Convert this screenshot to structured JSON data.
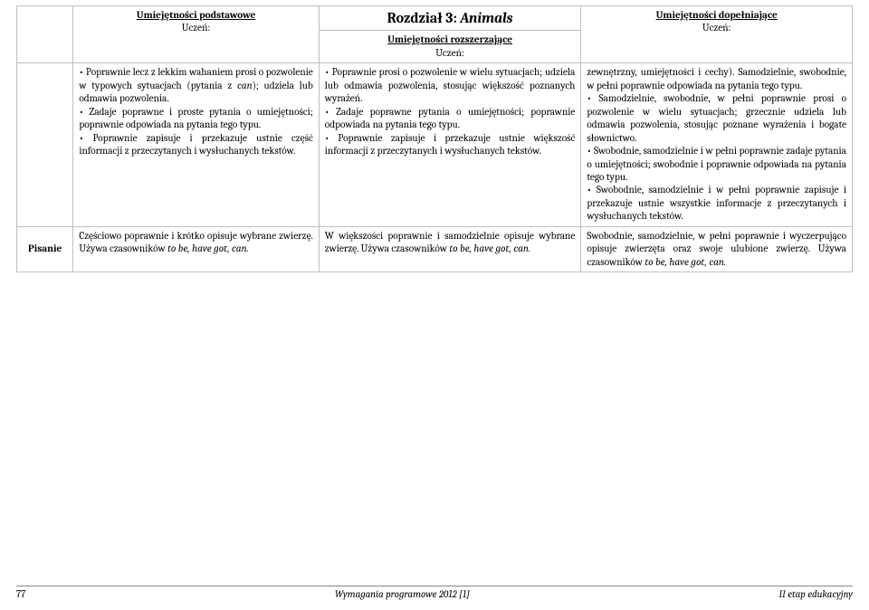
{
  "chapter": {
    "prefix": "Rozdział 3: ",
    "title_italic": "Animals"
  },
  "headers": {
    "basic": "Umiejętności podstawowe",
    "ext": "Umiejętności rozszerzające",
    "comp": "Umiejętności dopełniające",
    "student": "Uczeń:"
  },
  "row_label": "Pisanie",
  "r1": {
    "basic": [
      "• Poprawnie lecz z lekkim wahaniem prosi o pozwolenie w typowych sytuacjach (pytania z ",
      "can",
      "); udziela lub odmawia pozwolenia.",
      "• Zadaje poprawne i proste pytania o umiejętności; poprawnie odpowiada na pytania tego typu.",
      "• Poprawnie zapisuje i przekazuje ustnie część informacji z przeczytanych i wysłuchanych tekstów."
    ],
    "ext": [
      "• Poprawnie prosi o pozwolenie w wielu sytuacjach; udziela lub odmawia pozwolenia, stosując większość poznanych wyrażeń.",
      "• Zadaje poprawne pytania o umiejętności; poprawnie odpowiada na pytania tego typu.",
      "• Poprawnie zapisuje i przekazuje ustnie większość informacji z przeczytanych i wysłuchanych tekstów."
    ],
    "comp": [
      "zewnętrzny, umiejętności i cechy). Samodzielnie, swobodnie, w pełni poprawnie odpowiada na pytania tego typu.",
      "• Samodzielnie, swobodnie, w pełni poprawnie prosi o pozwolenie w wielu sytuacjach; grzecznie udziela lub odmawia pozwolenia, stosując poznane wyrażenia i bogate słownictwo.",
      "• Swobodnie, samodzielnie i w pełni poprawnie zadaje pytania o umiejętności; swobodnie i poprawnie odpowiada na pytania tego typu.",
      "• Swobodnie, samodzielnie i w pełni poprawnie zapisuje i przekazuje ustnie wszystkie informacje z przeczytanych i wysłuchanych tekstów."
    ]
  },
  "r2": {
    "basic": {
      "pre": "Częściowo poprawnie i krótko opisuje wybrane zwierzę. Używa czasowników ",
      "it": "to be, have got, can."
    },
    "ext": {
      "pre": "W większości poprawnie i samodzielnie opisuje wybrane zwierzę. Używa czasowników ",
      "it": "to be, have got, can."
    },
    "comp": {
      "pre": "Swobodnie, samodzielnie, w pełni poprawnie i wyczerpująco opisuje zwierzęta oraz swoje ulubione zwierzę. Używa czasowników ",
      "it": "to be, have got, can."
    }
  },
  "footer": {
    "page": "77",
    "center": "Wymagania programowe 2012  [1]",
    "right": "II etap edukacyjny"
  }
}
